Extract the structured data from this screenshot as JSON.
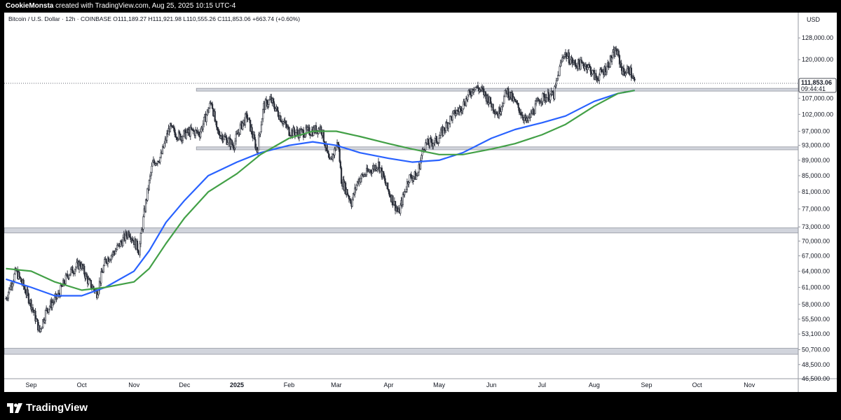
{
  "header": {
    "author": "CookieMonsta",
    "created_text": "created with TradingView.com, Aug 25, 2025 10:15 UTC-4"
  },
  "footer": {
    "brand": "TradingView",
    "logo_icon": "tradingview-logo-icon"
  },
  "chart_data": {
    "type": "line",
    "legend_text": "Bitcoin / U.S. Dollar · 12h · COINBASE  O111,189.27 H111,921.98 L110,555.26 C111,853.06 +663.74 (+0.60%)",
    "ohlc": {
      "symbol": "Bitcoin / U.S. Dollar",
      "interval": "12h",
      "exchange": "COINBASE",
      "open": 111189.27,
      "high": 111921.98,
      "low": 110555.26,
      "close": 111853.06,
      "change": 663.74,
      "change_pct": 0.6
    },
    "currency": "USD",
    "last_price_label": "111,853.06",
    "countdown_label": "09:44:41",
    "y_scale": "log",
    "ylim": [
      46500,
      138000
    ],
    "y_ticks": [
      128000,
      120000,
      107000,
      102000,
      97000,
      93000,
      89000,
      85000,
      81000,
      77000,
      73000,
      70000,
      67000,
      64000,
      61000,
      58000,
      55500,
      53100,
      50700,
      48500,
      46500
    ],
    "y_tick_labels": [
      "128,000.00",
      "120,000.00",
      "107,000.00",
      "102,000.00",
      "97,000.00",
      "93,000.00",
      "89,000.00",
      "85,000.00",
      "81,000.00",
      "77,000.00",
      "73,000.00",
      "70,000.00",
      "67,000.00",
      "64,000.00",
      "61,000.00",
      "58,000.00",
      "55,500.00",
      "53,100.00",
      "50,700.00",
      "48,500.00",
      "46,500.00"
    ],
    "x_ticks": [
      "2024-09-01",
      "2024-10-01",
      "2024-11-01",
      "2024-12-01",
      "2025-01-01",
      "2025-02-01",
      "2025-03-01",
      "2025-04-01",
      "2025-05-01",
      "2025-06-01",
      "2025-07-01",
      "2025-08-01",
      "2025-09-01",
      "2025-10-01",
      "2025-11-01"
    ],
    "x_tick_labels": [
      "Sep",
      "Oct",
      "Nov",
      "Dec",
      "2025",
      "Feb",
      "Mar",
      "Apr",
      "May",
      "Jun",
      "Jul",
      "Aug",
      "Sep",
      "Oct",
      "Nov"
    ],
    "xlim": [
      "2024-08-16",
      "2025-11-30"
    ],
    "price_path": [
      [
        "2024-08-17",
        59000
      ],
      [
        "2024-08-23",
        64000
      ],
      [
        "2024-08-27",
        61500
      ],
      [
        "2024-09-01",
        58000
      ],
      [
        "2024-09-06",
        53500
      ],
      [
        "2024-09-10",
        57000
      ],
      [
        "2024-09-17",
        59500
      ],
      [
        "2024-09-23",
        63500
      ],
      [
        "2024-09-30",
        65500
      ],
      [
        "2024-10-05",
        62000
      ],
      [
        "2024-10-10",
        60000
      ],
      [
        "2024-10-15",
        66000
      ],
      [
        "2024-10-21",
        68000
      ],
      [
        "2024-10-29",
        72000
      ],
      [
        "2024-11-04",
        68000
      ],
      [
        "2024-11-07",
        76000
      ],
      [
        "2024-11-12",
        88000
      ],
      [
        "2024-11-17",
        90000
      ],
      [
        "2024-11-22",
        98000
      ],
      [
        "2024-11-28",
        95500
      ],
      [
        "2024-12-05",
        97000
      ],
      [
        "2024-12-10",
        96500
      ],
      [
        "2024-12-17",
        106000
      ],
      [
        "2024-12-20",
        97000
      ],
      [
        "2024-12-30",
        93000
      ],
      [
        "2025-01-03",
        98000
      ],
      [
        "2025-01-07",
        101500
      ],
      [
        "2025-01-13",
        91500
      ],
      [
        "2025-01-17",
        104500
      ],
      [
        "2025-01-21",
        106500
      ],
      [
        "2025-01-27",
        101000
      ],
      [
        "2025-02-01",
        97000
      ],
      [
        "2025-02-07",
        96500
      ],
      [
        "2025-02-14",
        97000
      ],
      [
        "2025-02-20",
        98000
      ],
      [
        "2025-02-25",
        88000
      ],
      [
        "2025-03-02",
        94000
      ],
      [
        "2025-03-04",
        84000
      ],
      [
        "2025-03-10",
        78500
      ],
      [
        "2025-03-14",
        84000
      ],
      [
        "2025-03-20",
        86000
      ],
      [
        "2025-03-26",
        88000
      ],
      [
        "2025-03-31",
        82000
      ],
      [
        "2025-04-07",
        76000
      ],
      [
        "2025-04-13",
        84500
      ],
      [
        "2025-04-18",
        85000
      ],
      [
        "2025-04-22",
        93000
      ],
      [
        "2025-04-30",
        94500
      ],
      [
        "2025-05-08",
        101000
      ],
      [
        "2025-05-14",
        104000
      ],
      [
        "2025-05-22",
        111000
      ],
      [
        "2025-05-27",
        109000
      ],
      [
        "2025-06-05",
        102000
      ],
      [
        "2025-06-10",
        109500
      ],
      [
        "2025-06-17",
        104000
      ],
      [
        "2025-06-22",
        99500
      ],
      [
        "2025-06-30",
        107000
      ],
      [
        "2025-07-08",
        108000
      ],
      [
        "2025-07-12",
        118000
      ],
      [
        "2025-07-14",
        122500
      ],
      [
        "2025-07-20",
        118500
      ],
      [
        "2025-07-28",
        118000
      ],
      [
        "2025-08-02",
        113500
      ],
      [
        "2025-08-08",
        117000
      ],
      [
        "2025-08-14",
        123500
      ],
      [
        "2025-08-18",
        115500
      ],
      [
        "2025-08-22",
        116500
      ],
      [
        "2025-08-25",
        111850
      ]
    ],
    "series": [
      {
        "name": "",
        "color": "#2962ff",
        "points": [
          [
            "2024-08-17",
            62500
          ],
          [
            "2024-09-01",
            61000
          ],
          [
            "2024-09-15",
            59500
          ],
          [
            "2024-10-01",
            59500
          ],
          [
            "2024-10-15",
            61000
          ],
          [
            "2024-11-01",
            64000
          ],
          [
            "2024-11-10",
            68000
          ],
          [
            "2024-11-20",
            74000
          ],
          [
            "2024-12-01",
            79000
          ],
          [
            "2024-12-15",
            85000
          ],
          [
            "2025-01-01",
            88500
          ],
          [
            "2025-01-15",
            91000
          ],
          [
            "2025-02-01",
            93000
          ],
          [
            "2025-02-15",
            94000
          ],
          [
            "2025-03-01",
            93000
          ],
          [
            "2025-03-15",
            91000
          ],
          [
            "2025-04-01",
            89500
          ],
          [
            "2025-04-15",
            88500
          ],
          [
            "2025-05-01",
            89000
          ],
          [
            "2025-05-15",
            91000
          ],
          [
            "2025-06-01",
            95000
          ],
          [
            "2025-06-15",
            97500
          ],
          [
            "2025-07-01",
            99500
          ],
          [
            "2025-07-15",
            101500
          ],
          [
            "2025-08-01",
            106000
          ],
          [
            "2025-08-15",
            108500
          ],
          [
            "2025-08-25",
            109500
          ]
        ]
      },
      {
        "name": "",
        "color": "#43a047",
        "points": [
          [
            "2024-08-17",
            64500
          ],
          [
            "2024-09-01",
            64000
          ],
          [
            "2024-09-15",
            62000
          ],
          [
            "2024-10-01",
            60500
          ],
          [
            "2024-10-15",
            61000
          ],
          [
            "2024-11-01",
            62000
          ],
          [
            "2024-11-10",
            64500
          ],
          [
            "2024-11-20",
            69500
          ],
          [
            "2024-12-01",
            75000
          ],
          [
            "2024-12-15",
            81000
          ],
          [
            "2025-01-01",
            85500
          ],
          [
            "2025-01-15",
            90500
          ],
          [
            "2025-02-01",
            95000
          ],
          [
            "2025-02-15",
            97000
          ],
          [
            "2025-03-01",
            97000
          ],
          [
            "2025-03-15",
            95500
          ],
          [
            "2025-04-01",
            93500
          ],
          [
            "2025-04-15",
            92000
          ],
          [
            "2025-05-01",
            90500
          ],
          [
            "2025-05-15",
            90500
          ],
          [
            "2025-06-01",
            92000
          ],
          [
            "2025-06-15",
            93500
          ],
          [
            "2025-07-01",
            96000
          ],
          [
            "2025-07-15",
            99000
          ],
          [
            "2025-08-01",
            104500
          ],
          [
            "2025-08-15",
            108500
          ],
          [
            "2025-08-25",
            109500
          ]
        ]
      }
    ],
    "zones": [
      {
        "from": "2024-12-08",
        "low": 109300,
        "high": 110200
      },
      {
        "from": "2024-12-08",
        "low": 91800,
        "high": 92600
      },
      {
        "from": "2024-08-16",
        "low": 71700,
        "high": 72800
      },
      {
        "from": "2024-08-16",
        "low": 50000,
        "high": 50900
      }
    ],
    "zone_color": "#d1d4dc",
    "grid": false,
    "legend": "none"
  }
}
